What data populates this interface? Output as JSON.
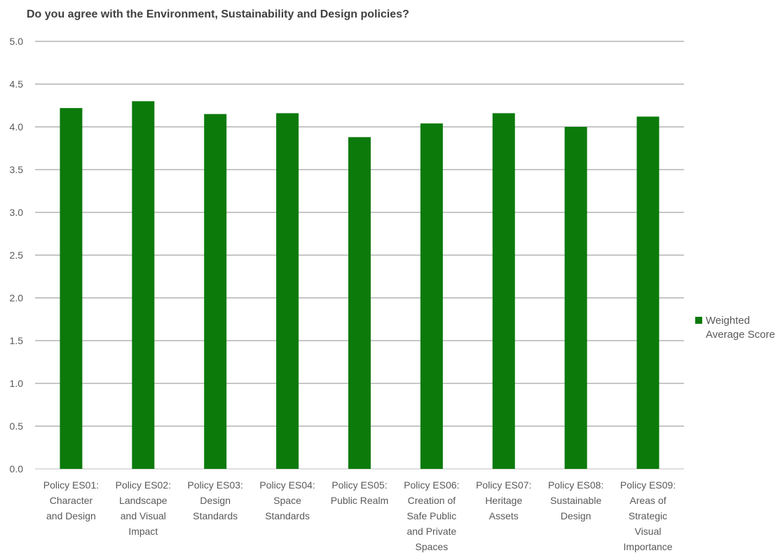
{
  "chart_data": {
    "type": "bar",
    "title": "Do you agree with the Environment, Sustainability and Design policies?",
    "categories": [
      "Policy ES01: Character and Design",
      "Policy ES02: Landscape and Visual Impact",
      "Policy ES03: Design Standards",
      "Policy ES04: Space Standards",
      "Policy ES05: Public Realm",
      "Policy ES06: Creation of Safe Public and Private Spaces",
      "Policy ES07: Heritage Assets",
      "Policy ES08: Sustainable Design",
      "Policy ES09: Areas of Strategic Visual Importance"
    ],
    "category_lines": [
      [
        "Policy ES01:",
        "Character",
        "and Design"
      ],
      [
        "Policy ES02:",
        "Landscape",
        "and Visual",
        "Impact"
      ],
      [
        "Policy ES03:",
        "Design",
        "Standards"
      ],
      [
        "Policy ES04:",
        "Space",
        "Standards"
      ],
      [
        "Policy ES05:",
        "Public Realm"
      ],
      [
        "Policy ES06:",
        "Creation of",
        "Safe Public",
        "and Private",
        "Spaces"
      ],
      [
        "Policy ES07:",
        "Heritage",
        "Assets"
      ],
      [
        "Policy ES08:",
        "Sustainable",
        "Design"
      ],
      [
        "Policy ES09:",
        "Areas of",
        "Strategic",
        "Visual",
        "Importance"
      ]
    ],
    "series": [
      {
        "name": "Weighted Average Score",
        "color": "#0b7a0b",
        "values": [
          4.22,
          4.3,
          4.15,
          4.16,
          3.88,
          4.04,
          4.16,
          4.0,
          4.12
        ]
      }
    ],
    "ylim": [
      0,
      5
    ],
    "yticks": [
      "0.0",
      "0.5",
      "1.0",
      "1.5",
      "2.0",
      "2.5",
      "3.0",
      "3.5",
      "4.0",
      "4.5",
      "5.0"
    ],
    "xlabel": "",
    "ylabel": "",
    "grid": true,
    "legend_position": "right"
  },
  "legend": {
    "label": "Weighted Average Score"
  }
}
